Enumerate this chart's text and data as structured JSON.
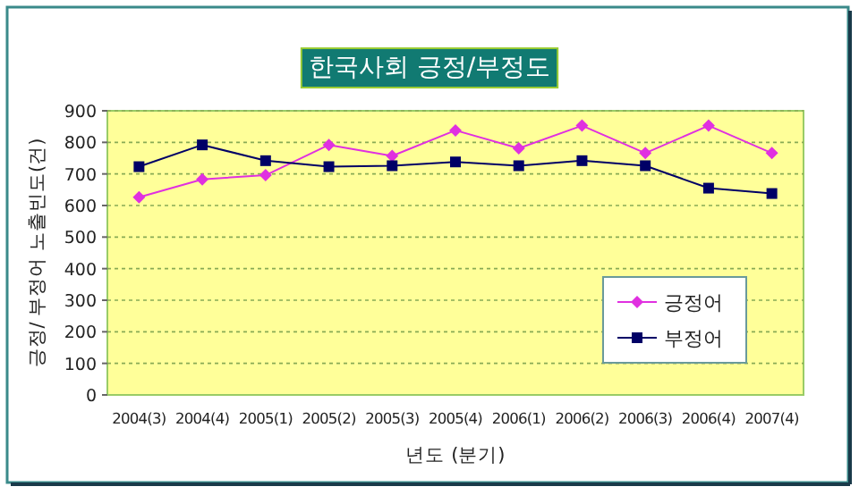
{
  "chart_data": {
    "type": "line",
    "title": "한국사회 긍정/부정도",
    "xlabel": "년도 (분기)",
    "ylabel": "긍정/ 부정어 노출빈도(건)",
    "categories": [
      "2004(3)",
      "2004(4)",
      "2005(1)",
      "2005(2)",
      "2005(3)",
      "2005(4)",
      "2006(1)",
      "2006(2)",
      "2006(3)",
      "2006(4)",
      "2007(4)"
    ],
    "series": [
      {
        "name": "긍정어",
        "color": "#e030e0",
        "marker": "diamond",
        "values": [
          626,
          683,
          696,
          792,
          757,
          838,
          781,
          853,
          766,
          853,
          766
        ]
      },
      {
        "name": "부정어",
        "color": "#000066",
        "marker": "square",
        "values": [
          723,
          792,
          742,
          723,
          726,
          738,
          726,
          742,
          726,
          655,
          638
        ]
      }
    ],
    "ylim": [
      0,
      900
    ],
    "yticks": [
      0,
      100,
      200,
      300,
      400,
      500,
      600,
      700,
      800,
      900
    ],
    "grid": "y",
    "legend": "bottom right"
  }
}
